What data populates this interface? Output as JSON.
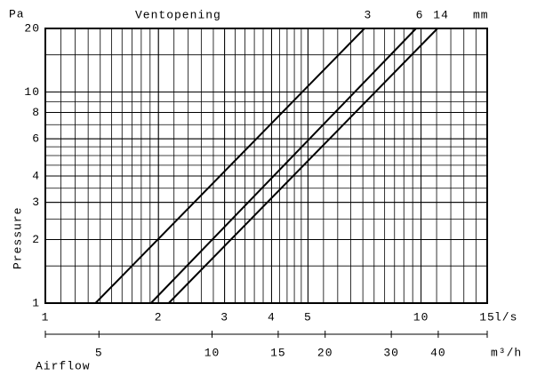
{
  "chart_data": {
    "type": "line",
    "title": "Ventopening",
    "series_unit": "mm",
    "y_unit": "Pa",
    "y_label": "Pressure",
    "x_label": "Airflow",
    "x_unit": "l/s",
    "x2_unit": "m³/h",
    "xscale": "log",
    "yscale": "log",
    "xlim": [
      1,
      15
    ],
    "ylim": [
      1,
      20
    ],
    "xticks": [
      1,
      2,
      3,
      4,
      5,
      10,
      15
    ],
    "yticks": [
      1,
      2,
      3,
      4,
      6,
      8,
      10,
      20
    ],
    "x2lim": [
      3.6,
      54
    ],
    "x2ticks": [
      5,
      10,
      15,
      20,
      30,
      40
    ],
    "xgrid": [
      1.1,
      1.2,
      1.3,
      1.4,
      1.5,
      1.6,
      1.7,
      1.8,
      1.9,
      2,
      2.2,
      2.4,
      2.6,
      2.8,
      3,
      3.2,
      3.4,
      3.6,
      3.8,
      4,
      4.2,
      4.4,
      4.6,
      4.8,
      5,
      5.5,
      6,
      6.5,
      7,
      7.5,
      8,
      8.5,
      9,
      9.5,
      10,
      11,
      12,
      13,
      14
    ],
    "ygrid": [
      1.5,
      2,
      2.5,
      3,
      3.5,
      4,
      4.5,
      5,
      5.5,
      6,
      7,
      8,
      9,
      10,
      15
    ],
    "grid": true,
    "series": [
      {
        "name": "3",
        "color": "#000000",
        "x": [
          1.36,
          7.07
        ],
        "values": [
          1,
          20
        ]
      },
      {
        "name": "6",
        "color": "#000000",
        "x": [
          1.91,
          9.7
        ],
        "values": [
          1,
          20
        ]
      },
      {
        "name": "14",
        "color": "#000000",
        "x": [
          2.13,
          11.06
        ],
        "values": [
          1,
          20
        ]
      }
    ]
  }
}
